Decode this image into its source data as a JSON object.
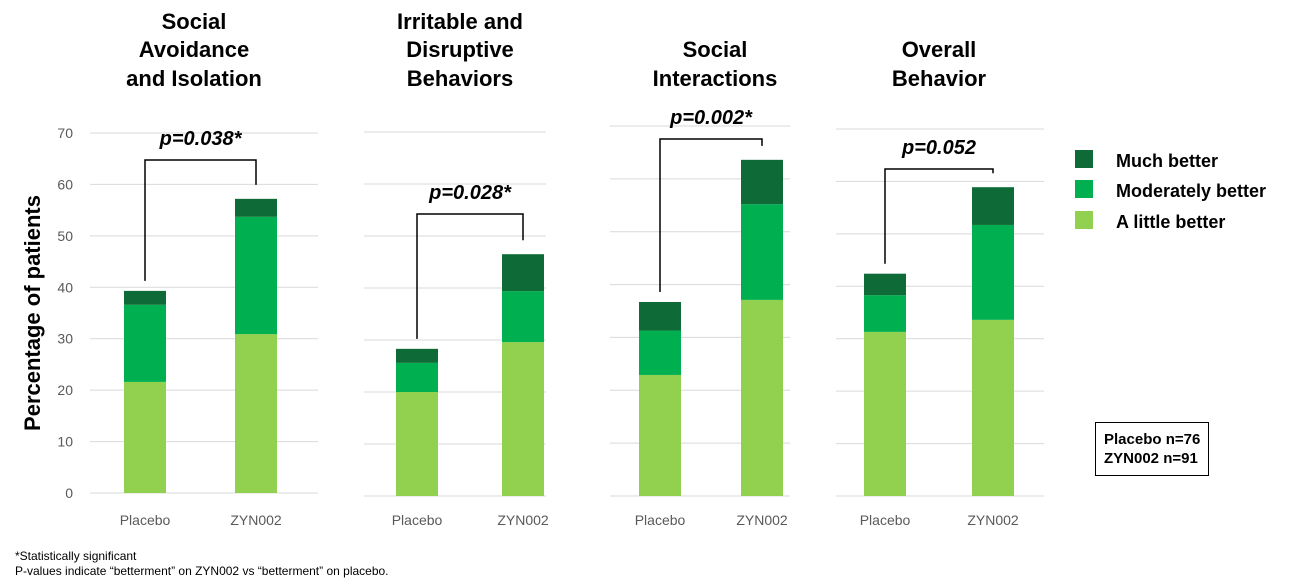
{
  "chart_data": {
    "type": "bar",
    "stacked": true,
    "ylabel": "Percentage of patients",
    "ylim": [
      0,
      70
    ],
    "yticks": [
      0,
      10,
      20,
      30,
      40,
      50,
      60,
      70
    ],
    "categories": [
      "Placebo",
      "ZYN002"
    ],
    "series_names": [
      "A little better",
      "Moderately better",
      "Much better"
    ],
    "colors": {
      "A little better": "#92d050",
      "Moderately better": "#00b050",
      "Much better": "#0e6b37"
    },
    "legend": [
      "Much better",
      "Moderately better",
      "A little better"
    ],
    "panels": [
      {
        "title": [
          "Social",
          "Avoidance",
          "and Isolation"
        ],
        "pvalue": "p=0.038*",
        "bars": [
          {
            "category": "Placebo",
            "a_little": 21.6,
            "moderately": 15.0,
            "much": 2.7,
            "total": 39.3
          },
          {
            "category": "ZYN002",
            "a_little": 30.9,
            "moderately": 22.8,
            "much": 3.5,
            "total": 57.2
          }
        ]
      },
      {
        "title": [
          "Irritable and",
          "Disruptive",
          "Behaviors"
        ],
        "pvalue": "p=0.028*",
        "bars": [
          {
            "category": "Placebo",
            "a_little": 20.0,
            "moderately": 5.6,
            "much": 2.7,
            "total": 28.3
          },
          {
            "category": "ZYN002",
            "a_little": 29.6,
            "moderately": 9.8,
            "much": 7.1,
            "total": 46.5
          }
        ]
      },
      {
        "title": [
          "Social",
          "Interactions"
        ],
        "pvalue": "p=0.002*",
        "bars": [
          {
            "category": "Placebo",
            "a_little": 22.9,
            "moderately": 8.4,
            "much": 5.4,
            "total": 36.7
          },
          {
            "category": "ZYN002",
            "a_little": 37.1,
            "moderately": 18.1,
            "much": 8.4,
            "total": 63.6
          }
        ]
      },
      {
        "title": [
          "Overall",
          "Behavior"
        ],
        "pvalue": "p=0.052",
        "bars": [
          {
            "category": "Placebo",
            "a_little": 31.3,
            "moderately": 7.0,
            "much": 4.1,
            "total": 42.4
          },
          {
            "category": "ZYN002",
            "a_little": 33.6,
            "moderately": 18.1,
            "much": 7.2,
            "total": 58.9
          }
        ]
      }
    ]
  },
  "sample_sizes": {
    "placebo": "Placebo n=76",
    "zyn002": "ZYN002  n=91"
  },
  "footnotes": {
    "significance": "*Statistically significant",
    "pvalue_note": "P-values indicate “betterment” on ZYN002 vs “betterment” on placebo."
  }
}
